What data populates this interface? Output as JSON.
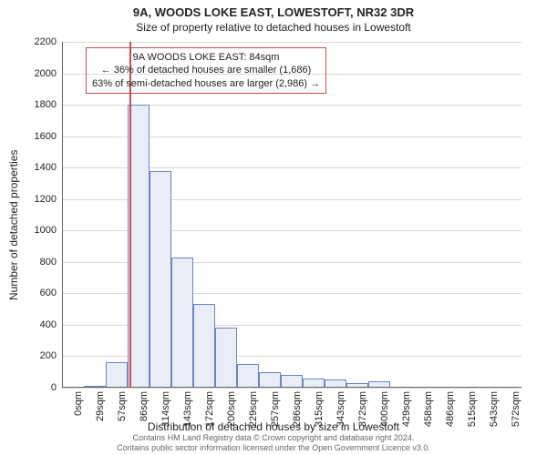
{
  "title": "9A, WOODS LOKE EAST, LOWESTOFT, NR32 3DR",
  "subtitle": "Size of property relative to detached houses in Lowestoft",
  "ylabel": "Number of detached properties",
  "xlabel": "Distribution of detached houses by size in Lowestoft",
  "chart": {
    "type": "histogram",
    "ylim": [
      0,
      2200
    ],
    "ytick_step": 200,
    "yticks": [
      0,
      200,
      400,
      600,
      800,
      1000,
      1200,
      1400,
      1600,
      1800,
      2000,
      2200
    ],
    "xticks": [
      "0sqm",
      "29sqm",
      "57sqm",
      "86sqm",
      "114sqm",
      "143sqm",
      "172sqm",
      "200sqm",
      "229sqm",
      "257sqm",
      "286sqm",
      "315sqm",
      "343sqm",
      "372sqm",
      "400sqm",
      "429sqm",
      "458sqm",
      "486sqm",
      "515sqm",
      "543sqm",
      "572sqm"
    ],
    "values": [
      0,
      10,
      160,
      1800,
      1380,
      830,
      530,
      380,
      150,
      100,
      80,
      60,
      50,
      30,
      40,
      0,
      0,
      0,
      0,
      0,
      0
    ],
    "bar_fill": "#e8edf7",
    "bar_stroke": "#6b84c4",
    "grid_color": "#d9d9d9",
    "axis_color": "#666666",
    "background": "#ffffff",
    "bar_width_ratio": 1.0,
    "marker_x_ratio": 0.147,
    "marker_height_ratio": 1.0,
    "marker_color": "#d04a4a"
  },
  "info_box": {
    "border_color": "#d04a4a",
    "lines": [
      "9A WOODS LOKE EAST: 84sqm",
      "← 36% of detached houses are smaller (1,686)",
      "63% of semi-detached houses are larger (2,986) →"
    ]
  },
  "footer": {
    "line1": "Contains HM Land Registry data © Crown copyright and database right 2024.",
    "line2": "Contains public sector information licensed under the Open Government Licence v3.0."
  },
  "fontsize_title": 13,
  "fontsize_labels": 12,
  "fontsize_ticks": 11,
  "fontsize_footer": 9
}
